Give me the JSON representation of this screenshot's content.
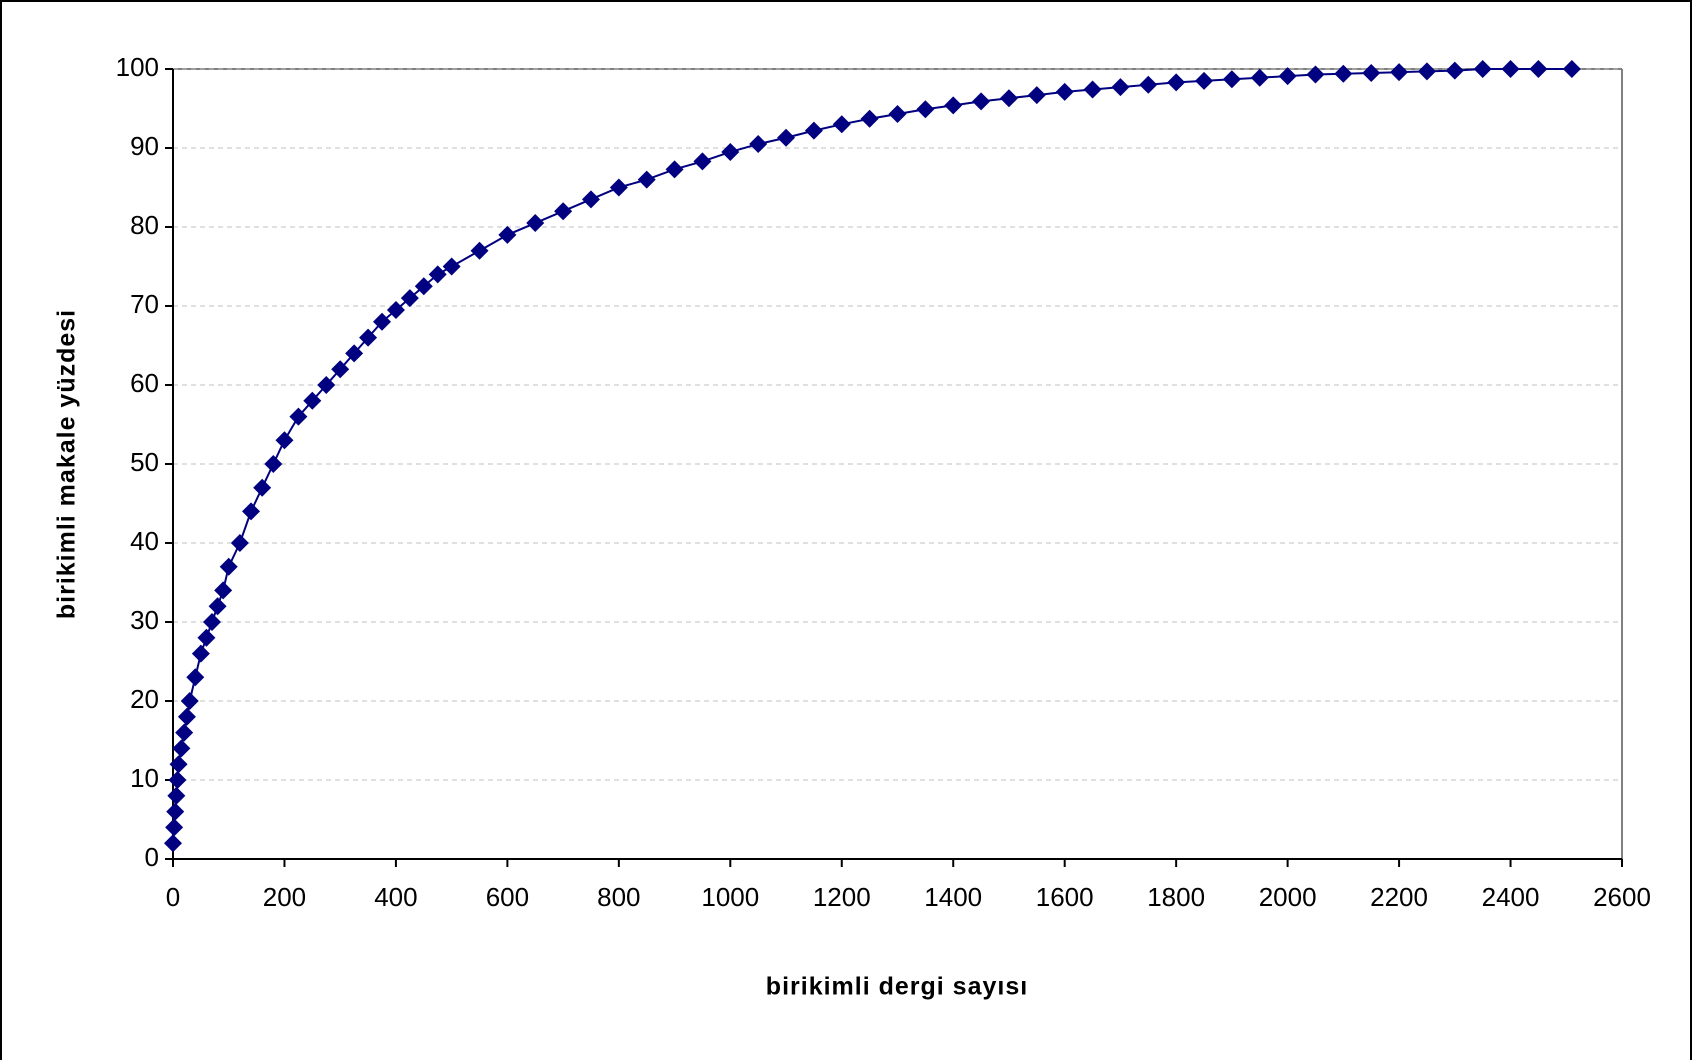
{
  "chart_data": {
    "type": "scatter-line",
    "x_label": "birikimli dergi sayısı",
    "y_label": "birikimli makale yüzdesi",
    "color": "#000080",
    "grid": true,
    "xlim": [
      0,
      2600
    ],
    "xticks": [
      0,
      200,
      400,
      600,
      800,
      1000,
      1200,
      1400,
      1600,
      1800,
      2000,
      2200,
      2400,
      2600
    ],
    "ylim": [
      0,
      100
    ],
    "yticks": [
      0,
      10,
      20,
      30,
      40,
      50,
      60,
      70,
      80,
      90,
      100
    ],
    "x": [
      0,
      2,
      4,
      6,
      8,
      10,
      15,
      20,
      25,
      30,
      40,
      50,
      60,
      70,
      80,
      90,
      100,
      120,
      140,
      160,
      180,
      200,
      225,
      250,
      275,
      300,
      325,
      350,
      375,
      400,
      425,
      450,
      475,
      500,
      550,
      600,
      650,
      700,
      750,
      800,
      850,
      900,
      950,
      1000,
      1050,
      1100,
      1150,
      1200,
      1250,
      1300,
      1350,
      1400,
      1450,
      1500,
      1550,
      1600,
      1650,
      1700,
      1750,
      1800,
      1850,
      1900,
      1950,
      2000,
      2050,
      2100,
      2150,
      2200,
      2250,
      2300,
      2350,
      2400,
      2450,
      2510
    ],
    "values": [
      2,
      4,
      6,
      8,
      10,
      12,
      14,
      16,
      18,
      20,
      23,
      26,
      28,
      30,
      32,
      34,
      37,
      40,
      44,
      47,
      50,
      53,
      56,
      58,
      60,
      62,
      64,
      66,
      68,
      69.5,
      71,
      72.5,
      74,
      75,
      77,
      79,
      80.5,
      82,
      83.5,
      85,
      86,
      87.3,
      88.3,
      89.5,
      90.5,
      91.3,
      92.2,
      93,
      93.7,
      94.3,
      94.9,
      95.4,
      95.9,
      96.3,
      96.7,
      97.1,
      97.4,
      97.7,
      98,
      98.3,
      98.5,
      98.7,
      98.9,
      99.1,
      99.3,
      99.4,
      99.5,
      99.6,
      99.7,
      99.8,
      100,
      100,
      100,
      100
    ]
  }
}
